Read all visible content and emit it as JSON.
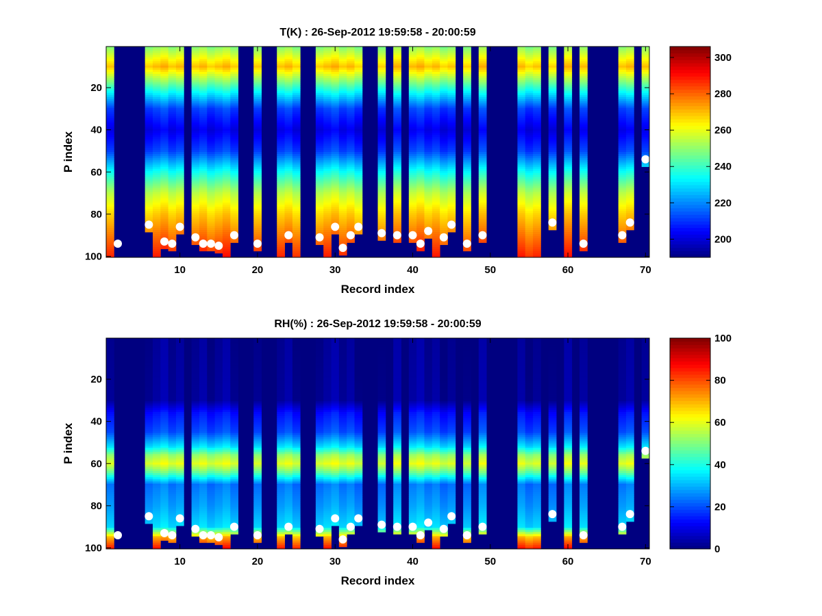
{
  "chart_data": [
    {
      "type": "heatmap",
      "title": "T(K) : 26-Sep-2012 19:59:58 - 20:00:59",
      "xlabel": "Record index",
      "ylabel": "P index",
      "xlim": [
        0.5,
        70.5
      ],
      "ylim": [
        0.5,
        100.5
      ],
      "y_reversed": true,
      "xticks": [
        10,
        20,
        30,
        40,
        50,
        60,
        70
      ],
      "yticks": [
        20,
        40,
        60,
        80,
        100
      ],
      "colormap": "jet",
      "clim": [
        190,
        306
      ],
      "colorbar_ticks": [
        200,
        220,
        240,
        260,
        280,
        300
      ],
      "grid": false,
      "empty_records": [
        2,
        3,
        4,
        5,
        11,
        18,
        19,
        21,
        22,
        26,
        27,
        34,
        35,
        37,
        39,
        46,
        48,
        50,
        51,
        52,
        53,
        57,
        59,
        61,
        63,
        64,
        65,
        66,
        69
      ],
      "profile_levels": [
        1,
        10,
        20,
        30,
        40,
        50,
        60,
        70,
        80,
        90,
        100
      ],
      "profile_values_K": [
        250,
        270,
        240,
        212,
        202,
        212,
        235,
        255,
        268,
        278,
        288
      ],
      "surface_markers": {
        "records": [
          2,
          6,
          8,
          9,
          10,
          12,
          13,
          14,
          15,
          17,
          20,
          24,
          28,
          30,
          31,
          32,
          33,
          36,
          38,
          40,
          41,
          42,
          44,
          45,
          47,
          49,
          58,
          62,
          67,
          68,
          70
        ],
        "p_index": [
          94,
          85,
          93,
          94,
          86,
          91,
          94,
          94,
          95,
          90,
          94,
          90,
          91,
          86,
          96,
          90,
          86,
          89,
          90,
          90,
          94,
          88,
          91,
          85,
          94,
          90,
          84,
          94,
          90,
          84,
          54
        ]
      }
    },
    {
      "type": "heatmap",
      "title": "RH(%) : 26-Sep-2012 19:59:58 - 20:00:59",
      "xlabel": "Record index",
      "ylabel": "P index",
      "xlim": [
        0.5,
        70.5
      ],
      "ylim": [
        0.5,
        100.5
      ],
      "y_reversed": true,
      "xticks": [
        10,
        20,
        30,
        40,
        50,
        60,
        70
      ],
      "yticks": [
        20,
        40,
        60,
        80,
        100
      ],
      "colormap": "jet",
      "clim": [
        0,
        100
      ],
      "colorbar_ticks": [
        0,
        20,
        40,
        60,
        80,
        100
      ],
      "grid": false,
      "empty_records": [
        2,
        3,
        4,
        5,
        11,
        18,
        19,
        21,
        22,
        26,
        27,
        34,
        35,
        37,
        39,
        46,
        48,
        50,
        51,
        52,
        53,
        57,
        59,
        61,
        63,
        64,
        65,
        66,
        69
      ],
      "profile_levels": [
        1,
        30,
        36,
        45,
        52,
        56,
        60,
        64,
        70,
        80,
        90,
        95,
        100
      ],
      "profile_values_pct": [
        2,
        3,
        14,
        20,
        35,
        52,
        60,
        48,
        24,
        28,
        34,
        70,
        85
      ],
      "surface_markers": {
        "records": [
          2,
          6,
          8,
          9,
          10,
          12,
          13,
          14,
          15,
          17,
          20,
          24,
          28,
          30,
          31,
          32,
          33,
          36,
          38,
          40,
          41,
          42,
          44,
          45,
          47,
          49,
          58,
          62,
          67,
          68,
          70
        ],
        "p_index": [
          94,
          85,
          93,
          94,
          86,
          91,
          94,
          94,
          95,
          90,
          94,
          90,
          91,
          86,
          96,
          90,
          86,
          89,
          90,
          90,
          94,
          88,
          91,
          85,
          94,
          90,
          84,
          94,
          90,
          84,
          54
        ]
      }
    }
  ]
}
